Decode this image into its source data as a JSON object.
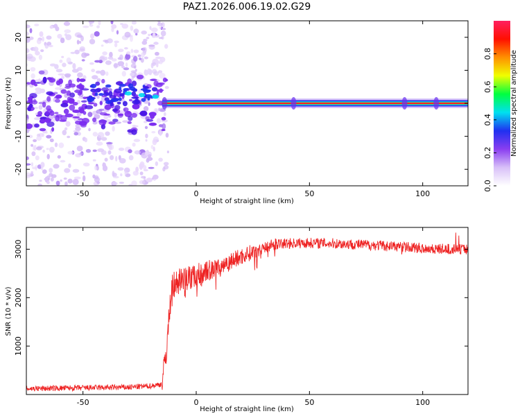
{
  "title": "PAZ1.2026.006.19.02.G29",
  "chart_data": [
    {
      "type": "heatmap",
      "xlabel": "Height of straight line (km)",
      "ylabel": "Frequency (Hz)",
      "xlim": [
        -75,
        120
      ],
      "ylim": [
        -25,
        25
      ],
      "x_ticks": [
        -50,
        0,
        50,
        100
      ],
      "y_ticks": [
        -20,
        -10,
        0,
        10,
        20
      ],
      "description_of_signal": {
        "carrier_start_km": -15,
        "carrier_frequency_hz": 0,
        "scatter_region_km": [
          -75,
          -15
        ]
      },
      "colorbar": {
        "label": "Normalized spectral amplitude",
        "range": [
          0,
          1
        ],
        "ticks": [
          "0.0",
          "0.2",
          "0.4",
          "0.6",
          "0.8"
        ],
        "colors": [
          "#ffffff",
          "#d8c0f8",
          "#8a3ef0",
          "#2030f0",
          "#00e0f0",
          "#00ff40",
          "#f0ff00",
          "#ff9000",
          "#ff1000",
          "#ff2060"
        ]
      }
    },
    {
      "type": "line",
      "xlabel": "Height of straight line (km)",
      "ylabel": "SNR (10 * v/v)",
      "xlim": [
        -75,
        120
      ],
      "ylim": [
        0,
        3450
      ],
      "x_ticks": [
        -50,
        0,
        50,
        100
      ],
      "y_ticks": [
        1000,
        2000,
        3000
      ],
      "series": [
        {
          "name": "SNR",
          "color": "#ee2222",
          "x": [
            -75,
            -60,
            -45,
            -30,
            -22,
            -18,
            -15,
            -13,
            -11,
            -9,
            -5,
            0,
            5,
            10,
            15,
            20,
            25,
            30,
            35,
            40,
            50,
            60,
            70,
            80,
            90,
            100,
            110,
            120
          ],
          "y": [
            120,
            130,
            140,
            150,
            170,
            190,
            220,
            1000,
            2150,
            2350,
            2400,
            2450,
            2550,
            2650,
            2750,
            2850,
            2950,
            3050,
            3100,
            3120,
            3130,
            3120,
            3100,
            3080,
            3050,
            3020,
            3000,
            3000
          ]
        }
      ]
    }
  ]
}
